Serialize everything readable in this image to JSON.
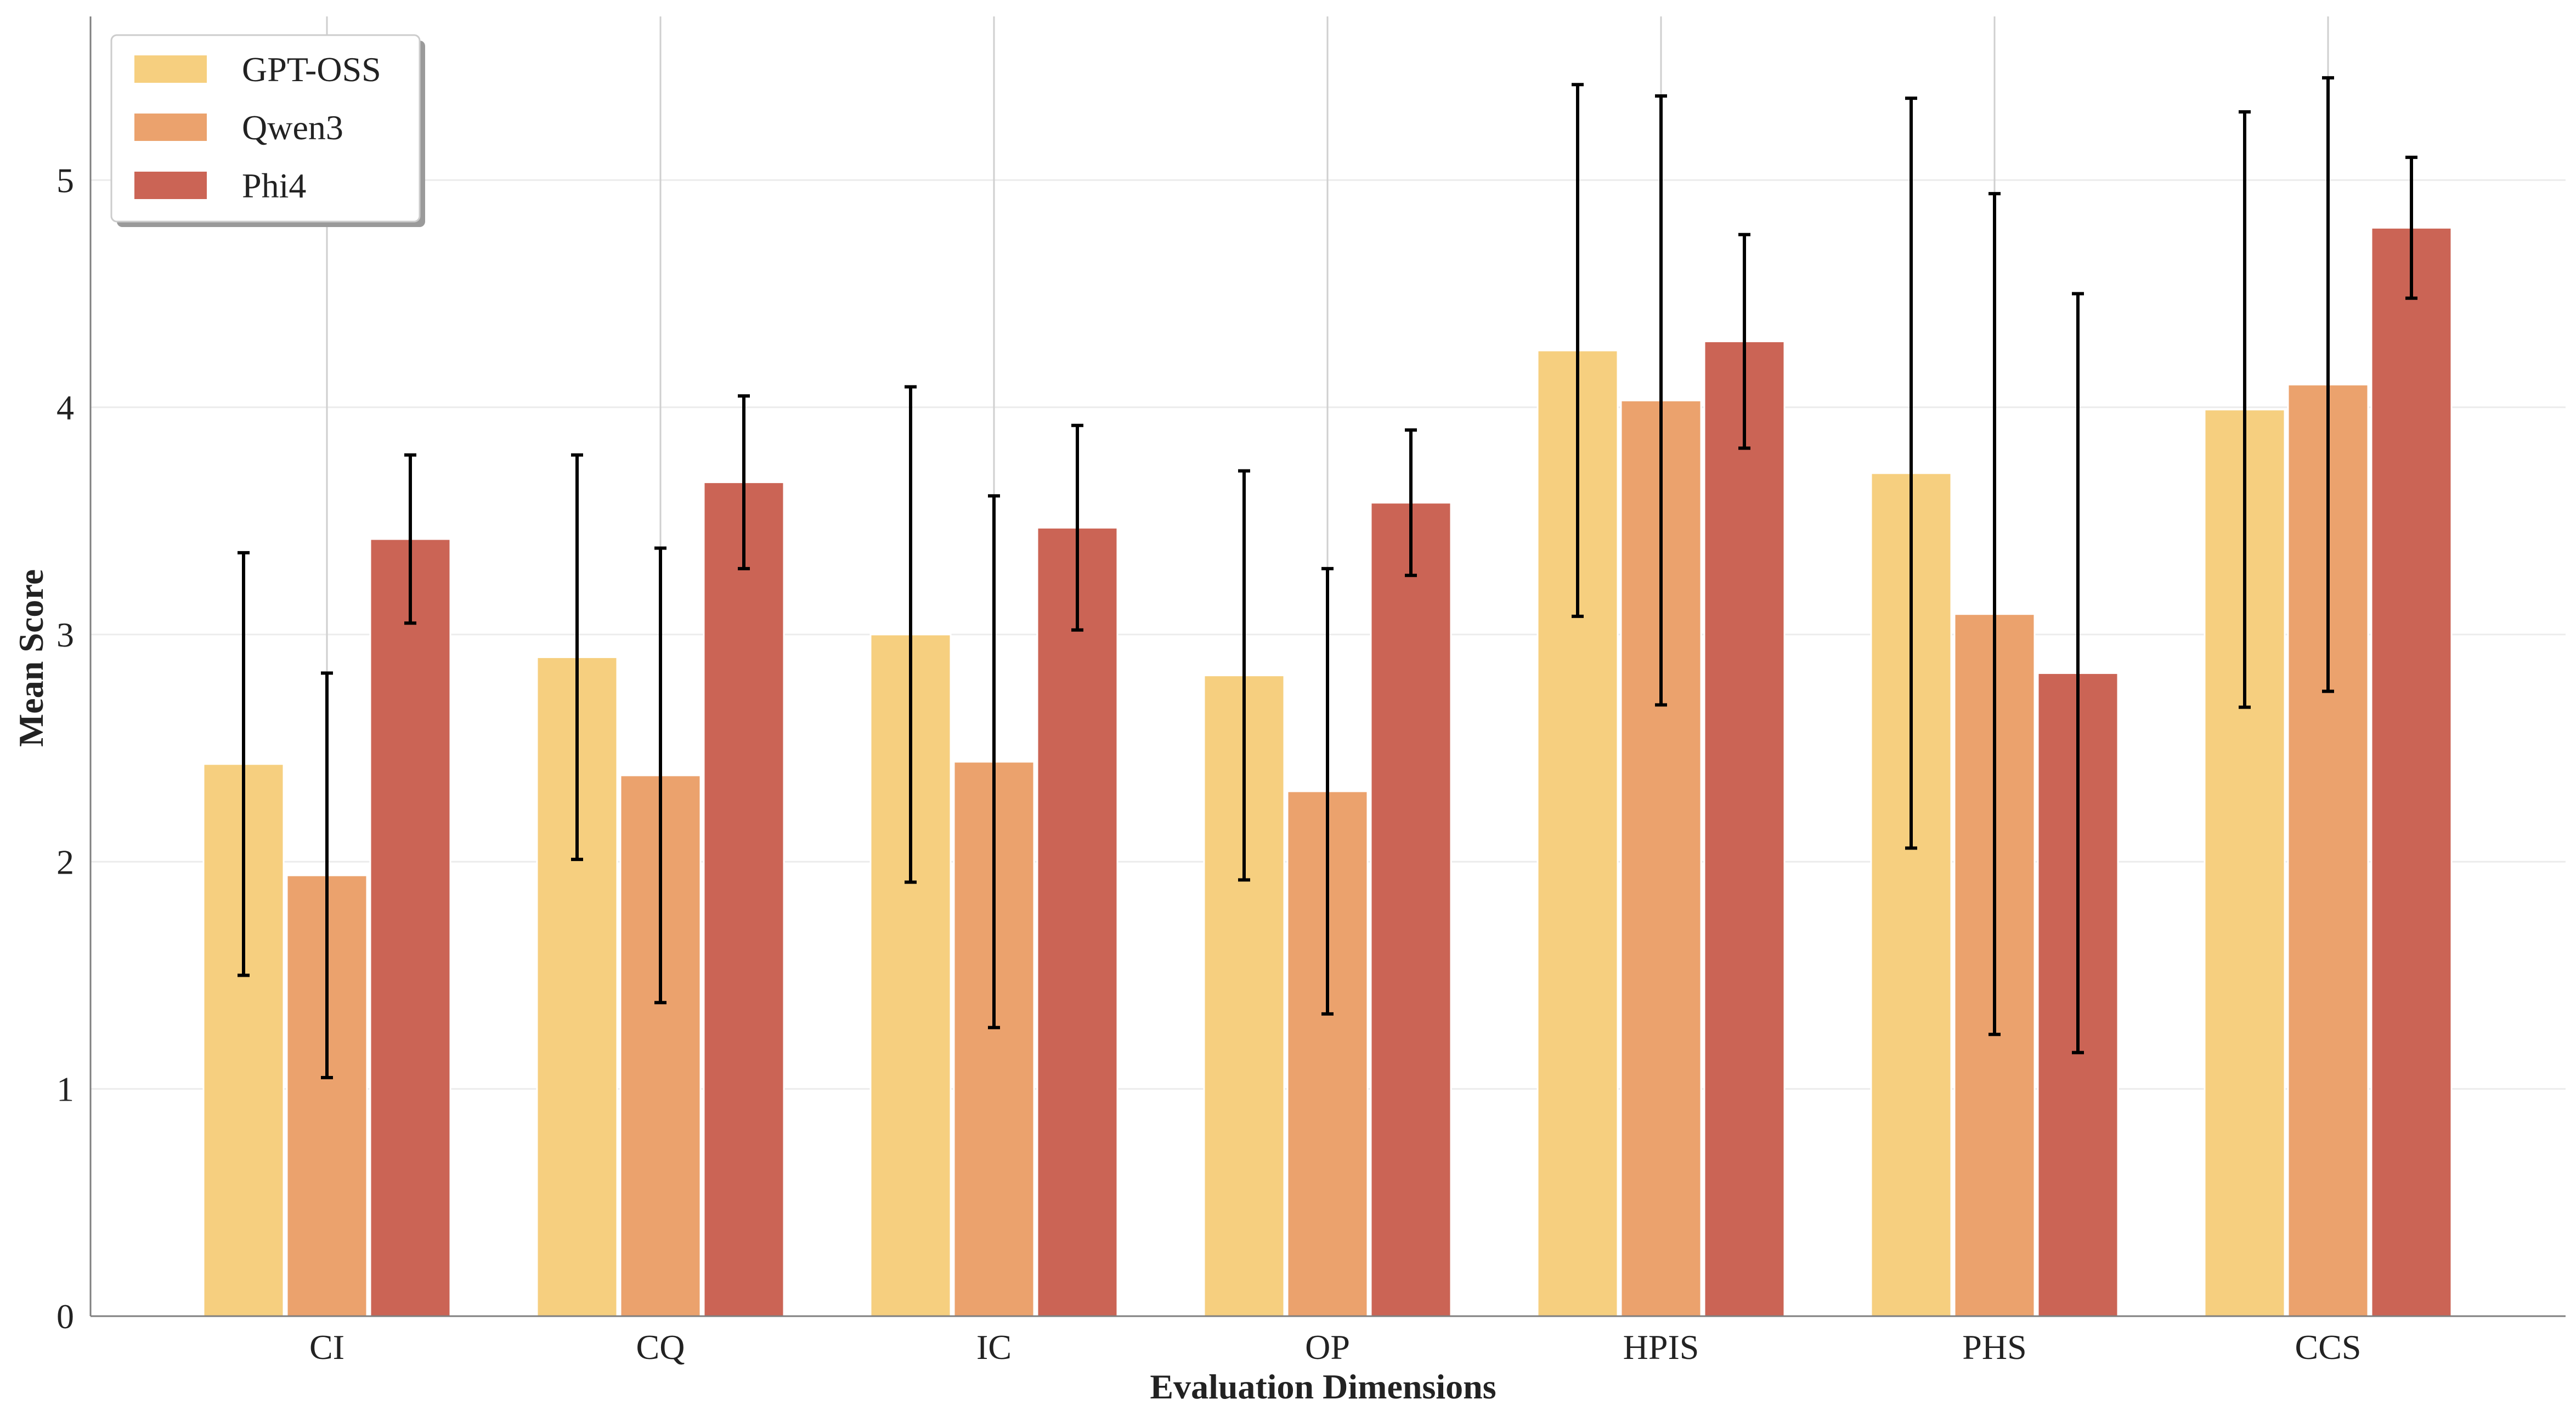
{
  "chart_data": {
    "type": "bar",
    "title": "",
    "xlabel": "Evaluation Dimensions",
    "ylabel": "Mean Score",
    "ylim": [
      0,
      5.72
    ],
    "yticks": [
      0,
      1,
      2,
      3,
      4,
      5
    ],
    "grid": true,
    "legend_position": "top-left",
    "categories": [
      "CI",
      "CQ",
      "IC",
      "OP",
      "HPIS",
      "PHS",
      "CCS"
    ],
    "series": [
      {
        "name": "GPT-OSS",
        "color": "#F6CF7F",
        "values": [
          2.43,
          2.9,
          3.0,
          2.82,
          4.25,
          3.71,
          3.99
        ],
        "errors": [
          0.93,
          0.89,
          1.09,
          0.9,
          1.17,
          1.65,
          1.31
        ]
      },
      {
        "name": "Qwen3",
        "color": "#EBA26D",
        "values": [
          1.94,
          2.38,
          2.44,
          2.31,
          4.03,
          3.09,
          4.1
        ],
        "errors": [
          0.89,
          1.0,
          1.17,
          0.98,
          1.34,
          1.85,
          1.35
        ]
      },
      {
        "name": "Phi4",
        "color": "#CB6455",
        "values": [
          3.42,
          3.67,
          3.47,
          3.58,
          4.29,
          2.83,
          4.79
        ],
        "errors": [
          0.37,
          0.38,
          0.45,
          0.32,
          0.47,
          1.67,
          0.31
        ]
      }
    ]
  }
}
